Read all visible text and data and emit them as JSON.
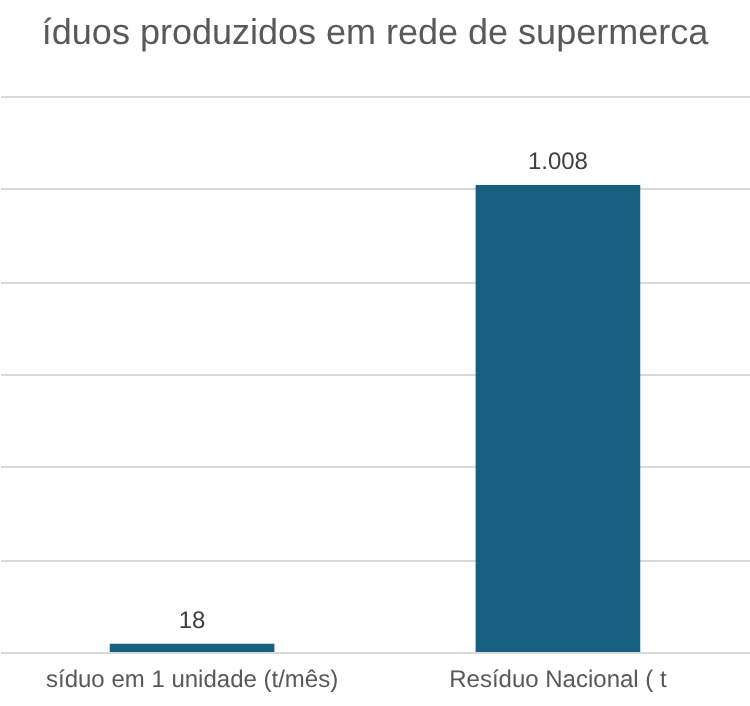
{
  "chart_data": {
    "type": "bar",
    "title": "íduos produzidos em  rede de supermerca",
    "categories": [
      "síduo em 1 unidade  (t/mês)",
      "Resíduo Nacional ( t"
    ],
    "values": [
      18,
      1008
    ],
    "value_labels": [
      "18",
      "1.008"
    ],
    "color": "#17607f",
    "ylim": [
      0,
      1200
    ],
    "yticks": [
      {
        "value": 0,
        "label": null
      },
      {
        "value": 200,
        "label": null
      },
      {
        "value": 400,
        "label": null
      },
      {
        "value": 600,
        "label": null
      },
      {
        "value": 800,
        "label": null
      },
      {
        "value": 1000,
        "label": null
      },
      {
        "value": 1200,
        "label": null
      }
    ],
    "grid": "y",
    "tick_labels": "x"
  }
}
